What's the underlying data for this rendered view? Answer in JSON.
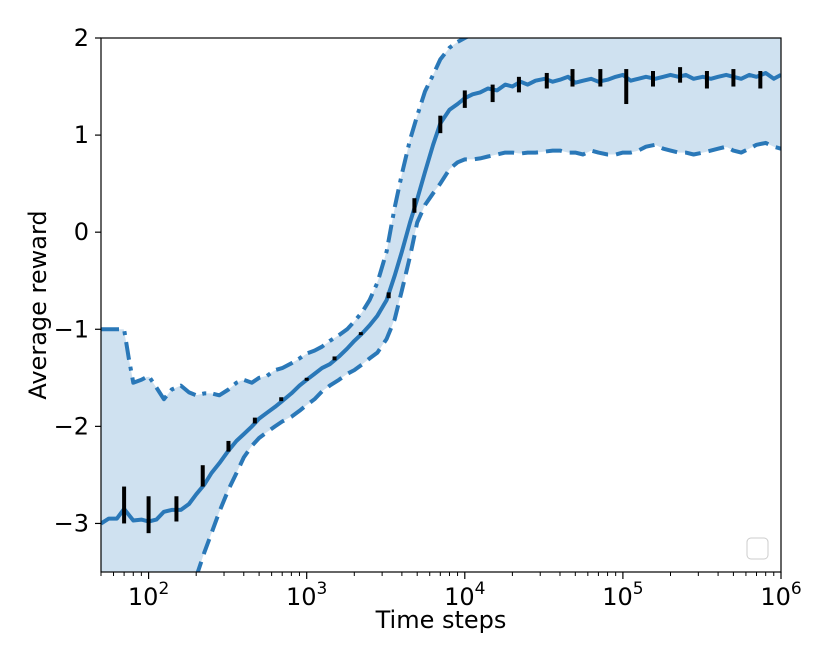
{
  "chart_data": {
    "type": "line",
    "xlabel": "Time steps",
    "ylabel": "Average reward",
    "xscale": "log",
    "xlim": [
      50,
      1000000
    ],
    "ylim": [
      -3.5,
      2
    ],
    "x_ticks": [
      {
        "value": 100,
        "base": "10",
        "exp": "2"
      },
      {
        "value": 1000,
        "base": "10",
        "exp": "3"
      },
      {
        "value": 10000,
        "base": "10",
        "exp": "4"
      },
      {
        "value": 100000,
        "base": "10",
        "exp": "5"
      },
      {
        "value": 1000000,
        "base": "10",
        "exp": "6"
      }
    ],
    "y_ticks": [
      {
        "value": 2,
        "label": "2"
      },
      {
        "value": 1,
        "label": "1"
      },
      {
        "value": 0,
        "label": "0"
      },
      {
        "value": -1,
        "label": "−1"
      },
      {
        "value": -2,
        "label": "−2"
      },
      {
        "value": -3,
        "label": "−3"
      }
    ],
    "grid": false,
    "legend": "bottom-right (empty)",
    "colors": {
      "mean_line": "#2a78b8",
      "band_fill": "#cfe1f0",
      "error_bars": "#000000"
    },
    "series": [
      {
        "style": "solid",
        "x": [
          50,
          56,
          63,
          70,
          80,
          90,
          100,
          112,
          125,
          140,
          160,
          180,
          200,
          225,
          250,
          280,
          320,
          360,
          400,
          450,
          500,
          560,
          630,
          700,
          800,
          900,
          1000,
          1120,
          1250,
          1400,
          1600,
          1800,
          2000,
          2250,
          2500,
          2800,
          3200,
          3600,
          4000,
          4500,
          5000,
          5600,
          6300,
          7000,
          8000,
          9000,
          10000,
          11200,
          12500,
          14000,
          16000,
          18000,
          20000,
          22500,
          25000,
          28000,
          32000,
          36000,
          40000,
          45000,
          50000,
          56000,
          63000,
          70000,
          80000,
          90000,
          100000,
          112000,
          125000,
          140000,
          160000,
          180000,
          200000,
          225000,
          250000,
          280000,
          320000,
          360000,
          400000,
          450000,
          500000,
          560000,
          630000,
          700000,
          800000,
          900000,
          1000000
        ],
        "y": [
          -3.0,
          -2.95,
          -2.95,
          -2.85,
          -2.97,
          -2.96,
          -2.98,
          -2.96,
          -2.88,
          -2.86,
          -2.86,
          -2.8,
          -2.7,
          -2.6,
          -2.48,
          -2.38,
          -2.25,
          -2.15,
          -2.08,
          -2.0,
          -1.92,
          -1.86,
          -1.8,
          -1.74,
          -1.66,
          -1.58,
          -1.52,
          -1.46,
          -1.4,
          -1.36,
          -1.28,
          -1.2,
          -1.12,
          -1.04,
          -0.96,
          -0.86,
          -0.7,
          -0.45,
          -0.2,
          0.1,
          0.34,
          0.62,
          0.9,
          1.12,
          1.26,
          1.32,
          1.38,
          1.42,
          1.44,
          1.48,
          1.46,
          1.52,
          1.5,
          1.55,
          1.52,
          1.56,
          1.58,
          1.55,
          1.57,
          1.6,
          1.54,
          1.56,
          1.58,
          1.55,
          1.57,
          1.6,
          1.62,
          1.56,
          1.58,
          1.6,
          1.58,
          1.6,
          1.62,
          1.6,
          1.62,
          1.58,
          1.6,
          1.58,
          1.6,
          1.62,
          1.6,
          1.58,
          1.62,
          1.6,
          1.64,
          1.58,
          1.62
        ]
      },
      {
        "style": "dashdot",
        "x": [
          50,
          56,
          63,
          70,
          75,
          80,
          90,
          100,
          112,
          125,
          140,
          160,
          180,
          200,
          225,
          250,
          280,
          320,
          360,
          400,
          450,
          500,
          560,
          630,
          700,
          800,
          900,
          1000,
          1120,
          1250,
          1400,
          1600,
          1800,
          2000,
          2250,
          2500,
          2800,
          3200,
          3600,
          4000,
          4500,
          5000,
          5600,
          6300,
          7000,
          8000,
          9000,
          10000,
          11500,
          13000
        ],
        "y": [
          -1.0,
          -1.0,
          -1.0,
          -1.0,
          -1.3,
          -1.55,
          -1.52,
          -1.48,
          -1.6,
          -1.72,
          -1.62,
          -1.58,
          -1.65,
          -1.68,
          -1.66,
          -1.66,
          -1.68,
          -1.62,
          -1.55,
          -1.52,
          -1.55,
          -1.5,
          -1.48,
          -1.42,
          -1.4,
          -1.35,
          -1.3,
          -1.25,
          -1.22,
          -1.18,
          -1.12,
          -1.06,
          -1.0,
          -0.92,
          -0.82,
          -0.7,
          -0.52,
          -0.2,
          0.25,
          0.6,
          0.95,
          1.2,
          1.45,
          1.62,
          1.78,
          1.9,
          1.96,
          2.0,
          2.05,
          2.1
        ]
      },
      {
        "style": "dashed",
        "x": [
          200,
          225,
          250,
          280,
          320,
          360,
          400,
          450,
          500,
          560,
          630,
          700,
          800,
          900,
          1000,
          1120,
          1250,
          1400,
          1600,
          1800,
          2000,
          2250,
          2500,
          2800,
          3200,
          3600,
          4000,
          4500,
          5000,
          5600,
          6300,
          7000,
          8000,
          9000,
          10000,
          11200,
          12500,
          14000,
          16000,
          18000,
          20000,
          22500,
          25000,
          28000,
          32000,
          36000,
          40000,
          45000,
          50000,
          56000,
          63000,
          70000,
          80000,
          90000,
          100000,
          112000,
          125000,
          140000,
          160000,
          180000,
          200000,
          225000,
          250000,
          280000,
          320000,
          360000,
          400000,
          450000,
          500000,
          560000,
          630000,
          700000,
          800000,
          900000,
          1000000
        ],
        "y": [
          -3.55,
          -3.3,
          -3.1,
          -2.88,
          -2.65,
          -2.48,
          -2.32,
          -2.2,
          -2.12,
          -2.06,
          -2.0,
          -1.95,
          -1.9,
          -1.84,
          -1.78,
          -1.72,
          -1.64,
          -1.58,
          -1.52,
          -1.46,
          -1.42,
          -1.36,
          -1.3,
          -1.24,
          -1.1,
          -0.9,
          -0.6,
          -0.25,
          0.1,
          0.28,
          0.4,
          0.5,
          0.65,
          0.72,
          0.75,
          0.75,
          0.76,
          0.78,
          0.8,
          0.82,
          0.82,
          0.81,
          0.82,
          0.82,
          0.83,
          0.84,
          0.84,
          0.82,
          0.82,
          0.8,
          0.84,
          0.82,
          0.8,
          0.8,
          0.82,
          0.82,
          0.84,
          0.88,
          0.9,
          0.86,
          0.84,
          0.82,
          0.82,
          0.8,
          0.82,
          0.84,
          0.86,
          0.88,
          0.84,
          0.82,
          0.86,
          0.9,
          0.92,
          0.88,
          0.86
        ]
      }
    ],
    "error_bars": [
      {
        "x": 70,
        "low": -3.0,
        "high": -2.62
      },
      {
        "x": 100,
        "low": -3.1,
        "high": -2.72
      },
      {
        "x": 150,
        "low": -2.98,
        "high": -2.72
      },
      {
        "x": 220,
        "low": -2.62,
        "high": -2.4
      },
      {
        "x": 320,
        "low": -2.26,
        "high": -2.15
      },
      {
        "x": 470,
        "low": -1.97,
        "high": -1.91
      },
      {
        "x": 690,
        "low": -1.74,
        "high": -1.7
      },
      {
        "x": 1000,
        "low": -1.53,
        "high": -1.5
      },
      {
        "x": 1500,
        "low": -1.32,
        "high": -1.28
      },
      {
        "x": 2200,
        "low": -1.06,
        "high": -1.03
      },
      {
        "x": 3300,
        "low": -0.68,
        "high": -0.62
      },
      {
        "x": 4800,
        "low": 0.2,
        "high": 0.35
      },
      {
        "x": 7000,
        "low": 1.02,
        "high": 1.2
      },
      {
        "x": 10000,
        "low": 1.28,
        "high": 1.46
      },
      {
        "x": 15000,
        "low": 1.34,
        "high": 1.52
      },
      {
        "x": 22000,
        "low": 1.44,
        "high": 1.6
      },
      {
        "x": 33000,
        "low": 1.48,
        "high": 1.64
      },
      {
        "x": 48000,
        "low": 1.5,
        "high": 1.68
      },
      {
        "x": 72000,
        "low": 1.5,
        "high": 1.68
      },
      {
        "x": 105000,
        "low": 1.32,
        "high": 1.68
      },
      {
        "x": 155000,
        "low": 1.5,
        "high": 1.66
      },
      {
        "x": 230000,
        "low": 1.54,
        "high": 1.7
      },
      {
        "x": 340000,
        "low": 1.48,
        "high": 1.66
      },
      {
        "x": 500000,
        "low": 1.5,
        "high": 1.68
      },
      {
        "x": 740000,
        "low": 1.48,
        "high": 1.66
      }
    ]
  }
}
